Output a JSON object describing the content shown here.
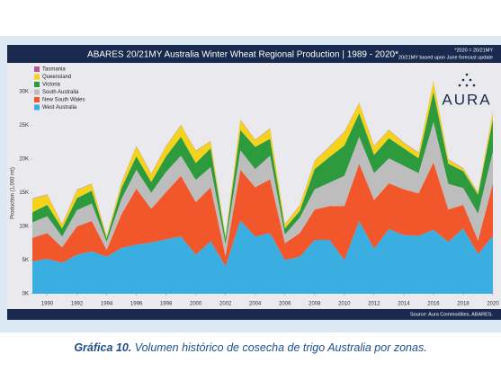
{
  "chart_data": {
    "type": "stacked-area",
    "title": "ABARES 20/21MY Australia Winter Wheat Regional Production | 1989 - 2020*",
    "notes": [
      "*2020 = 20/21MY",
      "20/21MY based upon June forecast update"
    ],
    "y_label": "Production (1,000 mt)",
    "source": "Source: Aura Commodities, ABARES.",
    "logo": "AURA",
    "x": [
      1989,
      1990,
      1991,
      1992,
      1993,
      1994,
      1995,
      1996,
      1997,
      1998,
      1999,
      2000,
      2001,
      2002,
      2003,
      2004,
      2005,
      2006,
      2007,
      2008,
      2009,
      2010,
      2011,
      2012,
      2013,
      2014,
      2015,
      2016,
      2017,
      2018,
      2019,
      2020
    ],
    "xlim": [
      1989,
      2020
    ],
    "xticks": [
      1990,
      1992,
      1994,
      1996,
      1998,
      2000,
      2002,
      2004,
      2006,
      2008,
      2010,
      2012,
      2014,
      2016,
      2018,
      2020
    ],
    "ylim": [
      0,
      34000
    ],
    "yticks": [
      {
        "value": 0,
        "label": "0K"
      },
      {
        "value": 5000,
        "label": "5K"
      },
      {
        "value": 10000,
        "label": "10K"
      },
      {
        "value": 15000,
        "label": "15K"
      },
      {
        "value": 20000,
        "label": "20K"
      },
      {
        "value": 25000,
        "label": "25K"
      },
      {
        "value": 30000,
        "label": "30K"
      }
    ],
    "grid": false,
    "legend": "top-left",
    "series": [
      {
        "name": "Tasmania",
        "color": "#b05a9a",
        "values": [
          50,
          50,
          50,
          50,
          50,
          50,
          50,
          50,
          50,
          50,
          50,
          50,
          50,
          50,
          50,
          50,
          50,
          50,
          50,
          50,
          50,
          50,
          50,
          50,
          50,
          50,
          50,
          50,
          50,
          50,
          50,
          50
        ]
      },
      {
        "name": "Queensland",
        "color": "#f5d21b",
        "values": [
          2000,
          1500,
          600,
          1200,
          1000,
          300,
          800,
          1500,
          1200,
          1500,
          1700,
          1800,
          1000,
          300,
          1500,
          1000,
          1500,
          600,
          800,
          1200,
          1500,
          2000,
          1500,
          1300,
          1200,
          800,
          800,
          1500,
          600,
          400,
          300,
          1100
        ]
      },
      {
        "name": "Victoria",
        "color": "#2e9a3e",
        "values": [
          1500,
          1700,
          1200,
          1800,
          1900,
          500,
          1600,
          2000,
          1600,
          2300,
          2800,
          2500,
          2800,
          800,
          3000,
          3300,
          2500,
          900,
          1000,
          3000,
          3800,
          4500,
          3500,
          2700,
          3000,
          2600,
          2200,
          4500,
          3000,
          2500,
          2800,
          4800
        ]
      },
      {
        "name": "South Australia",
        "color": "#bdbdbd",
        "values": [
          2300,
          2500,
          1600,
          2400,
          2600,
          1200,
          2300,
          2800,
          2400,
          3000,
          3000,
          3300,
          3000,
          1800,
          2900,
          2700,
          3500,
          1300,
          2300,
          3000,
          3500,
          4500,
          4000,
          4000,
          3700,
          3500,
          3000,
          6000,
          3800,
          2500,
          4000,
          4700
        ]
      },
      {
        "name": "New South Wales",
        "color": "#f2572b",
        "values": [
          3500,
          3800,
          2300,
          4200,
          4500,
          1000,
          5000,
          8300,
          5000,
          7000,
          9000,
          7800,
          8000,
          1500,
          7500,
          7300,
          8000,
          2500,
          3500,
          4500,
          5000,
          8000,
          8500,
          7200,
          6800,
          6800,
          6300,
          10000,
          4800,
          3500,
          2000,
          7800
        ]
      },
      {
        "name": "West Australia",
        "color": "#3aaee0",
        "values": [
          4800,
          5200,
          4600,
          5800,
          6300,
          5500,
          6800,
          7300,
          7600,
          8100,
          8500,
          5800,
          7800,
          4100,
          10900,
          8500,
          9000,
          5000,
          5500,
          8000,
          8000,
          5000,
          10800,
          6700,
          9600,
          8700,
          8600,
          9500,
          7700,
          9700,
          5900,
          8600
        ]
      }
    ]
  },
  "caption": {
    "label": "Gráfica 10.",
    "text": "Volumen histórico de cosecha de trigo Australia por zonas."
  }
}
